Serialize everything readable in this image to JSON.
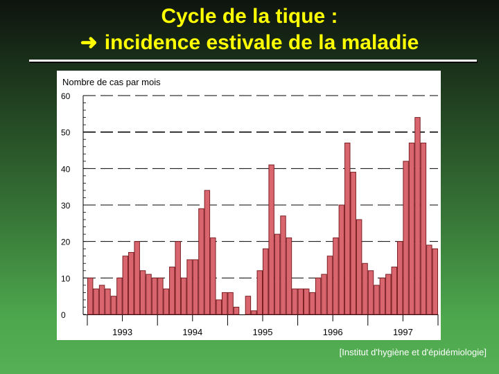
{
  "slide": {
    "title_line1": "Cycle de la tique :",
    "title_line2": "incidence estivale de la maladie",
    "arrow_icon": "right-arrow-icon",
    "source": "[Institut d'hygiène et d'épidémiologie]",
    "title_color": "#ffff00"
  },
  "chart_data": {
    "type": "bar",
    "ylabel": "Nombre de cas par mois",
    "ylim": [
      0,
      60
    ],
    "yticks": [
      0,
      10,
      20,
      30,
      40,
      50,
      60
    ],
    "year_labels": [
      "1993",
      "1994",
      "1995",
      "1996",
      "1997"
    ],
    "months_per_year": 12,
    "values": [
      10,
      7,
      8,
      7,
      5,
      10,
      16,
      17,
      20,
      12,
      11,
      10,
      10,
      7,
      13,
      20,
      10,
      15,
      15,
      29,
      34,
      21,
      4,
      6,
      6,
      2,
      0,
      5,
      1,
      12,
      18,
      41,
      22,
      27,
      21,
      7,
      7,
      7,
      6,
      10,
      11,
      16,
      21,
      30,
      47,
      39,
      26,
      14,
      12,
      8,
      10,
      11,
      13,
      20,
      42,
      47,
      54,
      47,
      19,
      18
    ],
    "bar_color": "#d9666e",
    "grid": true
  }
}
